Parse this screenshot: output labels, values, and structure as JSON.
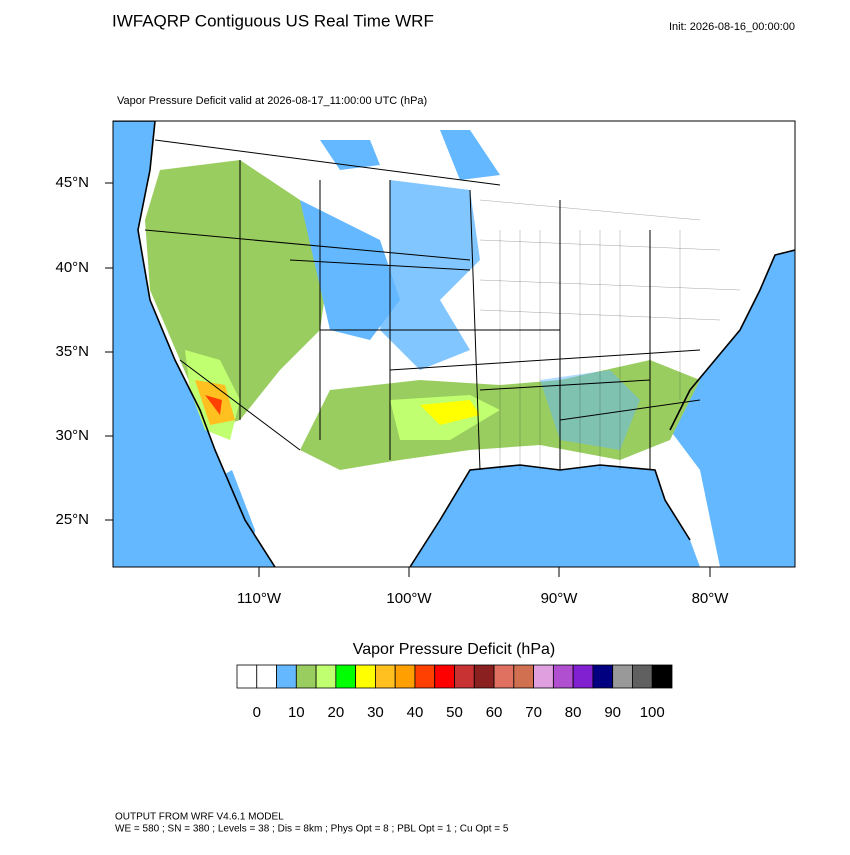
{
  "header": {
    "title": "IWFAQRP Contiguous US Real Time WRF",
    "init": "Init: 2026-08-16_00:00:00"
  },
  "map": {
    "subtitle": "Vapor Pressure Deficit valid at 2026-08-17_11:00:00 UTC   (hPa)",
    "lat_labels": [
      "45°N",
      "40°N",
      "35°N",
      "30°N",
      "25°N"
    ],
    "lon_labels": [
      "110°W",
      "100°W",
      "90°W",
      "80°W"
    ]
  },
  "colorbar": {
    "title": "Vapor Pressure Deficit  (hPa)",
    "colors": [
      "#ffffff",
      "#ffffff",
      "#63b8ff",
      "#9acd60",
      "#c0ff70",
      "#00ff00",
      "#ffff00",
      "#ffc020",
      "#ffa000",
      "#ff4000",
      "#ff0000",
      "#c83232",
      "#8b2020",
      "#e07060",
      "#d07050",
      "#e0a0e0",
      "#b050d0",
      "#8020d0",
      "#000080",
      "#999999",
      "#606060",
      "#000000"
    ],
    "labels": [
      "0",
      "10",
      "20",
      "30",
      "40",
      "50",
      "60",
      "70",
      "80",
      "90",
      "100"
    ]
  },
  "footer": {
    "line1": "OUTPUT FROM WRF V4.6.1 MODEL",
    "line2": "WE = 580 ; SN = 380 ; Levels = 38 ; Dis = 8km ; Phys Opt = 8 ; PBL Opt = 1 ; Cu Opt = 5"
  }
}
